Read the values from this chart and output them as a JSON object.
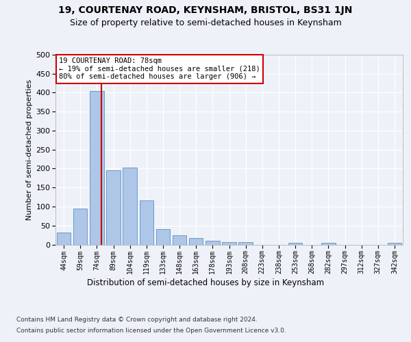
{
  "title1": "19, COURTENAY ROAD, KEYNSHAM, BRISTOL, BS31 1JN",
  "title2": "Size of property relative to semi-detached houses in Keynsham",
  "xlabel": "Distribution of semi-detached houses by size in Keynsham",
  "ylabel": "Number of semi-detached properties",
  "categories": [
    "44sqm",
    "59sqm",
    "74sqm",
    "89sqm",
    "104sqm",
    "119sqm",
    "133sqm",
    "148sqm",
    "163sqm",
    "178sqm",
    "193sqm",
    "208sqm",
    "223sqm",
    "238sqm",
    "253sqm",
    "268sqm",
    "282sqm",
    "297sqm",
    "312sqm",
    "327sqm",
    "342sqm"
  ],
  "values": [
    32,
    95,
    405,
    196,
    202,
    116,
    40,
    25,
    18,
    10,
    6,
    7,
    0,
    0,
    5,
    0,
    5,
    0,
    0,
    0,
    5
  ],
  "bar_color": "#aec6e8",
  "bar_edge_color": "#5a8fc2",
  "vline_color": "#cc0000",
  "annotation_title": "19 COURTENAY ROAD: 78sqm",
  "annotation_line1": "← 19% of semi-detached houses are smaller (218)",
  "annotation_line2": "80% of semi-detached houses are larger (906) →",
  "annotation_box_color": "#ffffff",
  "annotation_box_edge": "#cc0000",
  "ylim": [
    0,
    500
  ],
  "yticks": [
    0,
    50,
    100,
    150,
    200,
    250,
    300,
    350,
    400,
    450,
    500
  ],
  "footer1": "Contains HM Land Registry data © Crown copyright and database right 2024.",
  "footer2": "Contains public sector information licensed under the Open Government Licence v3.0.",
  "bg_color": "#eef2f8",
  "plot_bg_color": "#eef2f8"
}
